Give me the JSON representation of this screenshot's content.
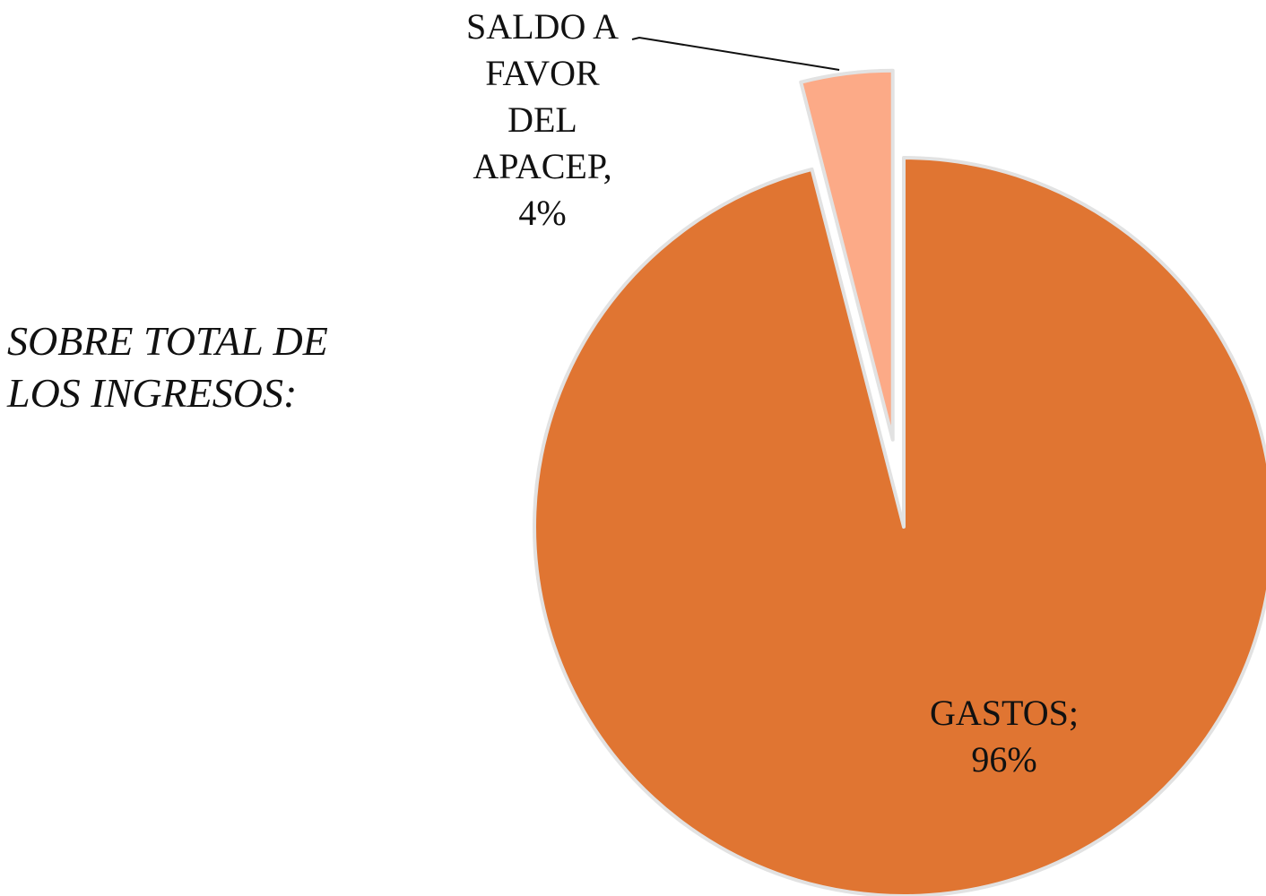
{
  "chart_data": {
    "type": "pie",
    "title": "SOBRE TOTAL DE LOS INGRESOS:",
    "categories": [
      "GASTOS;",
      "SALDO A FAVOR DEL APACEP,"
    ],
    "values": [
      96,
      4
    ],
    "value_labels": [
      "96%",
      "4%"
    ],
    "colors": [
      "#e07532",
      "#fcaa87"
    ]
  }
}
